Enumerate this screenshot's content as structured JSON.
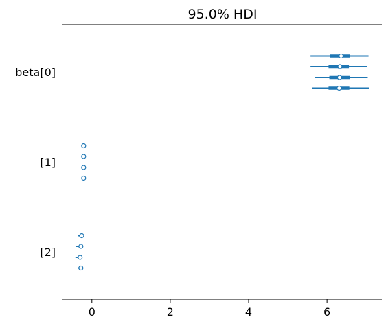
{
  "chart_data": {
    "type": "forest",
    "title": "95.0% HDI",
    "xlabel": "",
    "ylabel": "",
    "xlim": [
      -0.75,
      7.4
    ],
    "xticks": [
      0,
      2,
      4,
      6
    ],
    "xtick_labels": [
      "0",
      "2",
      "4",
      "6"
    ],
    "grid": false,
    "legend": "none",
    "color": "#1f77b4",
    "groups": [
      {
        "label": "beta[0]",
        "chains": [
          {
            "point": 6.36,
            "hdi": [
              5.58,
              7.06
            ],
            "iqr": [
              6.08,
              6.58
            ]
          },
          {
            "point": 6.33,
            "hdi": [
              5.58,
              7.03
            ],
            "iqr": [
              6.04,
              6.56
            ]
          },
          {
            "point": 6.32,
            "hdi": [
              5.7,
              7.04
            ],
            "iqr": [
              6.06,
              6.58
            ]
          },
          {
            "point": 6.31,
            "hdi": [
              5.62,
              7.08
            ],
            "iqr": [
              6.04,
              6.57
            ]
          }
        ]
      },
      {
        "label": "[1]",
        "chains": [
          {
            "point": -0.21,
            "hdi": [
              -0.25,
              -0.18
            ],
            "iqr": [
              -0.23,
              -0.2
            ]
          },
          {
            "point": -0.21,
            "hdi": [
              -0.25,
              -0.18
            ],
            "iqr": [
              -0.23,
              -0.2
            ]
          },
          {
            "point": -0.21,
            "hdi": [
              -0.25,
              -0.18
            ],
            "iqr": [
              -0.23,
              -0.2
            ]
          },
          {
            "point": -0.21,
            "hdi": [
              -0.25,
              -0.18
            ],
            "iqr": [
              -0.23,
              -0.2
            ]
          }
        ]
      },
      {
        "label": "[2]",
        "chains": [
          {
            "point": -0.26,
            "hdi": [
              -0.35,
              -0.22
            ],
            "iqr": [
              -0.3,
              -0.24
            ]
          },
          {
            "point": -0.28,
            "hdi": [
              -0.4,
              -0.24
            ],
            "iqr": [
              -0.32,
              -0.26
            ]
          },
          {
            "point": -0.3,
            "hdi": [
              -0.42,
              -0.25
            ],
            "iqr": [
              -0.34,
              -0.27
            ]
          },
          {
            "point": -0.28,
            "hdi": [
              -0.36,
              -0.24
            ],
            "iqr": [
              -0.31,
              -0.26
            ]
          }
        ]
      }
    ]
  }
}
